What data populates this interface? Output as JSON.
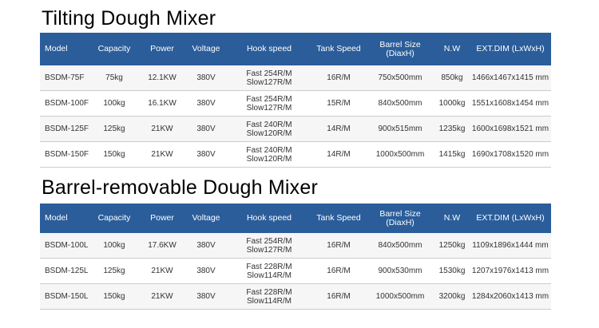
{
  "section1": {
    "title": "Tilting Dough Mixer",
    "headers": {
      "model": "Model",
      "capacity": "Capacity",
      "power": "Power",
      "voltage": "Voltage",
      "hook_speed": "Hook speed",
      "tank_speed": "Tank Speed",
      "barrel_size": "Barrel Size",
      "barrel_size_sub": "(DiaxH)",
      "nw": "N.W",
      "ext_dim": "EXT.DIM (LxWxH)"
    },
    "rows": [
      {
        "model": "BSDM-75F",
        "capacity": "75kg",
        "power": "12.1KW",
        "voltage": "380V",
        "hook_fast": "Fast 254R/M",
        "hook_slow": "Slow127R/M",
        "tank_speed": "16R/M",
        "barrel_size": "750x500mm",
        "nw": "850kg",
        "ext_dim": "1466x1467x1415 mm"
      },
      {
        "model": "BSDM-100F",
        "capacity": "100kg",
        "power": "16.1KW",
        "voltage": "380V",
        "hook_fast": "Fast 254R/M",
        "hook_slow": "Slow127R/M",
        "tank_speed": "15R/M",
        "barrel_size": "840x500mm",
        "nw": "1000kg",
        "ext_dim": "1551x1608x1454 mm"
      },
      {
        "model": "BSDM-125F",
        "capacity": "125kg",
        "power": "21KW",
        "voltage": "380V",
        "hook_fast": "Fast 240R/M",
        "hook_slow": "Slow120R/M",
        "tank_speed": "14R/M",
        "barrel_size": "900x515mm",
        "nw": "1235kg",
        "ext_dim": "1600x1698x1521 mm"
      },
      {
        "model": "BSDM-150F",
        "capacity": "150kg",
        "power": "21KW",
        "voltage": "380V",
        "hook_fast": "Fast 240R/M",
        "hook_slow": "Slow120R/M",
        "tank_speed": "14R/M",
        "barrel_size": "1000x500mm",
        "nw": "1415kg",
        "ext_dim": "1690x1708x1520 mm"
      }
    ]
  },
  "section2": {
    "title": "Barrel-removable Dough Mixer",
    "headers": {
      "model": "Model",
      "capacity": "Capacity",
      "power": "Power",
      "voltage": "Voltage",
      "hook_speed": "Hook speed",
      "tank_speed": "Tank Speed",
      "barrel_size": "Barrel Size",
      "barrel_size_sub": "(DiaxH)",
      "nw": "N.W",
      "ext_dim": "EXT.DIM (LxWxH)"
    },
    "rows": [
      {
        "model": "BSDM-100L",
        "capacity": "100kg",
        "power": "17.6KW",
        "voltage": "380V",
        "hook_fast": "Fast 254R/M",
        "hook_slow": "Slow127R/M",
        "tank_speed": "16R/M",
        "barrel_size": "840x500mm",
        "nw": "1250kg",
        "ext_dim": "1109x1896x1444 mm"
      },
      {
        "model": "BSDM-125L",
        "capacity": "125kg",
        "power": "21KW",
        "voltage": "380V",
        "hook_fast": "Fast 228R/M",
        "hook_slow": "Slow114R/M",
        "tank_speed": "16R/M",
        "barrel_size": "900x530mm",
        "nw": "1530kg",
        "ext_dim": "1207x1976x1413 mm"
      },
      {
        "model": "BSDM-150L",
        "capacity": "150kg",
        "power": "21KW",
        "voltage": "380V",
        "hook_fast": "Fast 228R/M",
        "hook_slow": "Slow114R/M",
        "tank_speed": "16R/M",
        "barrel_size": "1000x500mm",
        "nw": "3200kg",
        "ext_dim": "1284x2060x1413 mm"
      }
    ]
  }
}
